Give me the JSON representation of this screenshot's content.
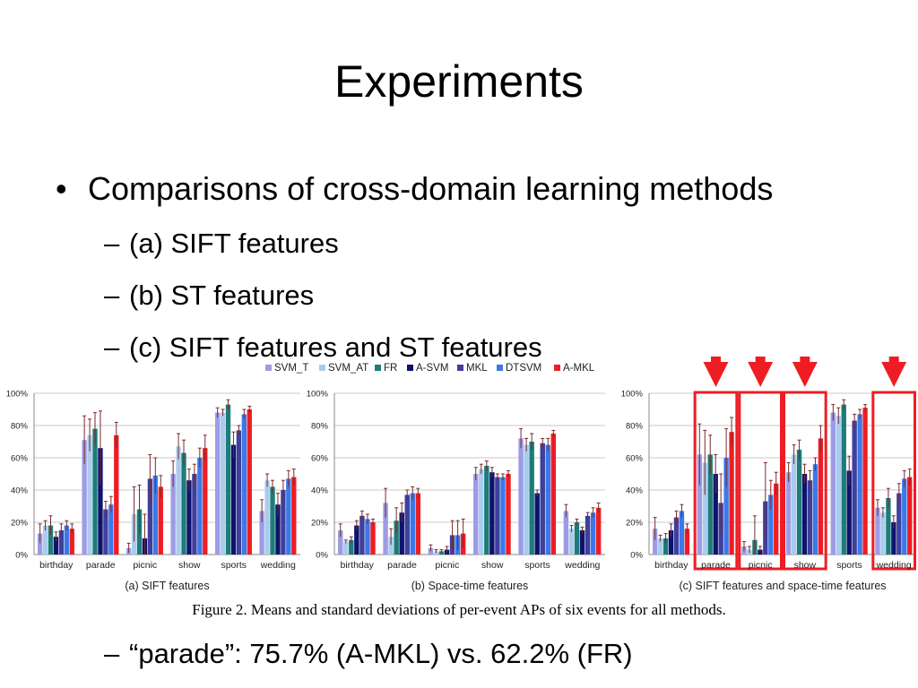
{
  "slide": {
    "title": "Experiments",
    "bullet": "Comparisons of cross-domain learning methods",
    "subbullets": [
      "(a)  SIFT features",
      "(b)  ST features",
      "(c)  SIFT features and ST features"
    ],
    "note": "“parade”: 75.7% (A-MKL) vs. 62.2% (FR)",
    "figure_caption": "Figure 2. Means and standard deviations of per-event APs of six events for all methods."
  },
  "colors": {
    "SVM_T": "#9c9ce6",
    "SVM_AT": "#a9ccee",
    "FR": "#1d7c78",
    "A-SVM": "#0d136e",
    "MKL": "#3f3f9c",
    "DTSVM": "#3b78e8",
    "A-MKL": "#ee1d24",
    "highlight": "#ee1d24",
    "errorbar": "#7a2a2a"
  },
  "chart_data": [
    {
      "type": "bar",
      "title": "(a) SIFT features",
      "categories": [
        "birthday",
        "parade",
        "picnic",
        "show",
        "sports",
        "wedding"
      ],
      "ylim": [
        0,
        100
      ],
      "yticks": [
        "0%",
        "20%",
        "40%",
        "60%",
        "80%",
        "100%"
      ],
      "grid": true,
      "legend": "top-center",
      "highlight": [],
      "series": [
        {
          "name": "SVM_T",
          "values": [
            13,
            71,
            4,
            50,
            88,
            27
          ],
          "err": [
            6,
            15,
            3,
            8,
            3,
            7
          ]
        },
        {
          "name": "SVM_AT",
          "values": [
            18,
            74,
            25,
            67,
            88,
            46
          ],
          "err": [
            3,
            10,
            17,
            8,
            2,
            4
          ]
        },
        {
          "name": "FR",
          "values": [
            18,
            78,
            28,
            63,
            93,
            42
          ],
          "err": [
            6,
            10,
            15,
            8,
            3,
            4
          ]
        },
        {
          "name": "A-SVM",
          "values": [
            11,
            66,
            10,
            46,
            68,
            31
          ],
          "err": [
            3,
            23,
            15,
            7,
            8,
            7
          ]
        },
        {
          "name": "MKL",
          "values": [
            15,
            28,
            47,
            50,
            77,
            40
          ],
          "err": [
            4,
            5,
            15,
            6,
            3,
            6
          ]
        },
        {
          "name": "DTSVM",
          "values": [
            18,
            31,
            49,
            60,
            87,
            47
          ],
          "err": [
            3,
            5,
            11,
            6,
            3,
            5
          ]
        },
        {
          "name": "A-MKL",
          "values": [
            16,
            74,
            42,
            66,
            90,
            48
          ],
          "err": [
            3,
            8,
            7,
            8,
            2,
            5
          ]
        }
      ]
    },
    {
      "type": "bar",
      "title": "(b) Space-time features",
      "categories": [
        "birthday",
        "parade",
        "picnic",
        "show",
        "sports",
        "wedding"
      ],
      "ylim": [
        0,
        100
      ],
      "yticks": [
        "0%",
        "20%",
        "40%",
        "60%",
        "80%",
        "100%"
      ],
      "grid": true,
      "legend": "top-center",
      "highlight": [],
      "series": [
        {
          "name": "SVM_T",
          "values": [
            15,
            32,
            4,
            50,
            72,
            27
          ],
          "err": [
            4,
            9,
            2,
            4,
            6,
            4
          ]
        },
        {
          "name": "SVM_AT",
          "values": [
            8,
            11,
            2,
            53,
            68,
            16
          ],
          "err": [
            1,
            5,
            1,
            3,
            4,
            2
          ]
        },
        {
          "name": "FR",
          "values": [
            9,
            21,
            2,
            55,
            70,
            20
          ],
          "err": [
            2,
            8,
            1,
            3,
            5,
            2
          ]
        },
        {
          "name": "A-SVM",
          "values": [
            18,
            26,
            3,
            51,
            38,
            15
          ],
          "err": [
            3,
            6,
            2,
            3,
            2,
            2
          ]
        },
        {
          "name": "MKL",
          "values": [
            24,
            37,
            12,
            48,
            69,
            24
          ],
          "err": [
            3,
            3,
            9,
            2,
            3,
            2
          ]
        },
        {
          "name": "DTSVM",
          "values": [
            22,
            38,
            12,
            48,
            68,
            26
          ],
          "err": [
            3,
            4,
            9,
            2,
            4,
            3
          ]
        },
        {
          "name": "A-MKL",
          "values": [
            20,
            38,
            13,
            50,
            75,
            29
          ],
          "err": [
            2,
            3,
            9,
            2,
            2,
            3
          ]
        }
      ]
    },
    {
      "type": "bar",
      "title": "(c) SIFT features and space-time features",
      "categories": [
        "birthday",
        "parade",
        "picnic",
        "show",
        "sports",
        "wedding"
      ],
      "ylim": [
        0,
        100
      ],
      "yticks": [
        "0%",
        "20%",
        "40%",
        "60%",
        "80%",
        "100%"
      ],
      "grid": true,
      "legend": "top-center",
      "highlight": [
        "parade",
        "picnic",
        "show",
        "wedding"
      ],
      "series": [
        {
          "name": "SVM_T",
          "values": [
            16,
            62,
            5,
            51,
            88,
            29
          ],
          "err": [
            7,
            19,
            3,
            6,
            5,
            5
          ]
        },
        {
          "name": "SVM_AT",
          "values": [
            10,
            57,
            3,
            62,
            86,
            26
          ],
          "err": [
            2,
            20,
            2,
            6,
            5,
            3
          ]
        },
        {
          "name": "FR",
          "values": [
            10,
            62,
            9,
            65,
            93,
            35
          ],
          "err": [
            3,
            12,
            15,
            6,
            3,
            6
          ]
        },
        {
          "name": "A-SVM",
          "values": [
            15,
            50,
            3,
            50,
            52,
            20
          ],
          "err": [
            4,
            12,
            2,
            6,
            9,
            4
          ]
        },
        {
          "name": "MKL",
          "values": [
            23,
            32,
            33,
            46,
            83,
            38
          ],
          "err": [
            4,
            18,
            24,
            6,
            4,
            6
          ]
        },
        {
          "name": "DTSVM",
          "values": [
            27,
            60,
            37,
            56,
            87,
            47
          ],
          "err": [
            4,
            18,
            9,
            4,
            3,
            5
          ]
        },
        {
          "name": "A-MKL",
          "values": [
            16,
            76,
            44,
            72,
            91,
            48
          ],
          "err": [
            3,
            9,
            7,
            8,
            2,
            5
          ]
        }
      ]
    }
  ]
}
